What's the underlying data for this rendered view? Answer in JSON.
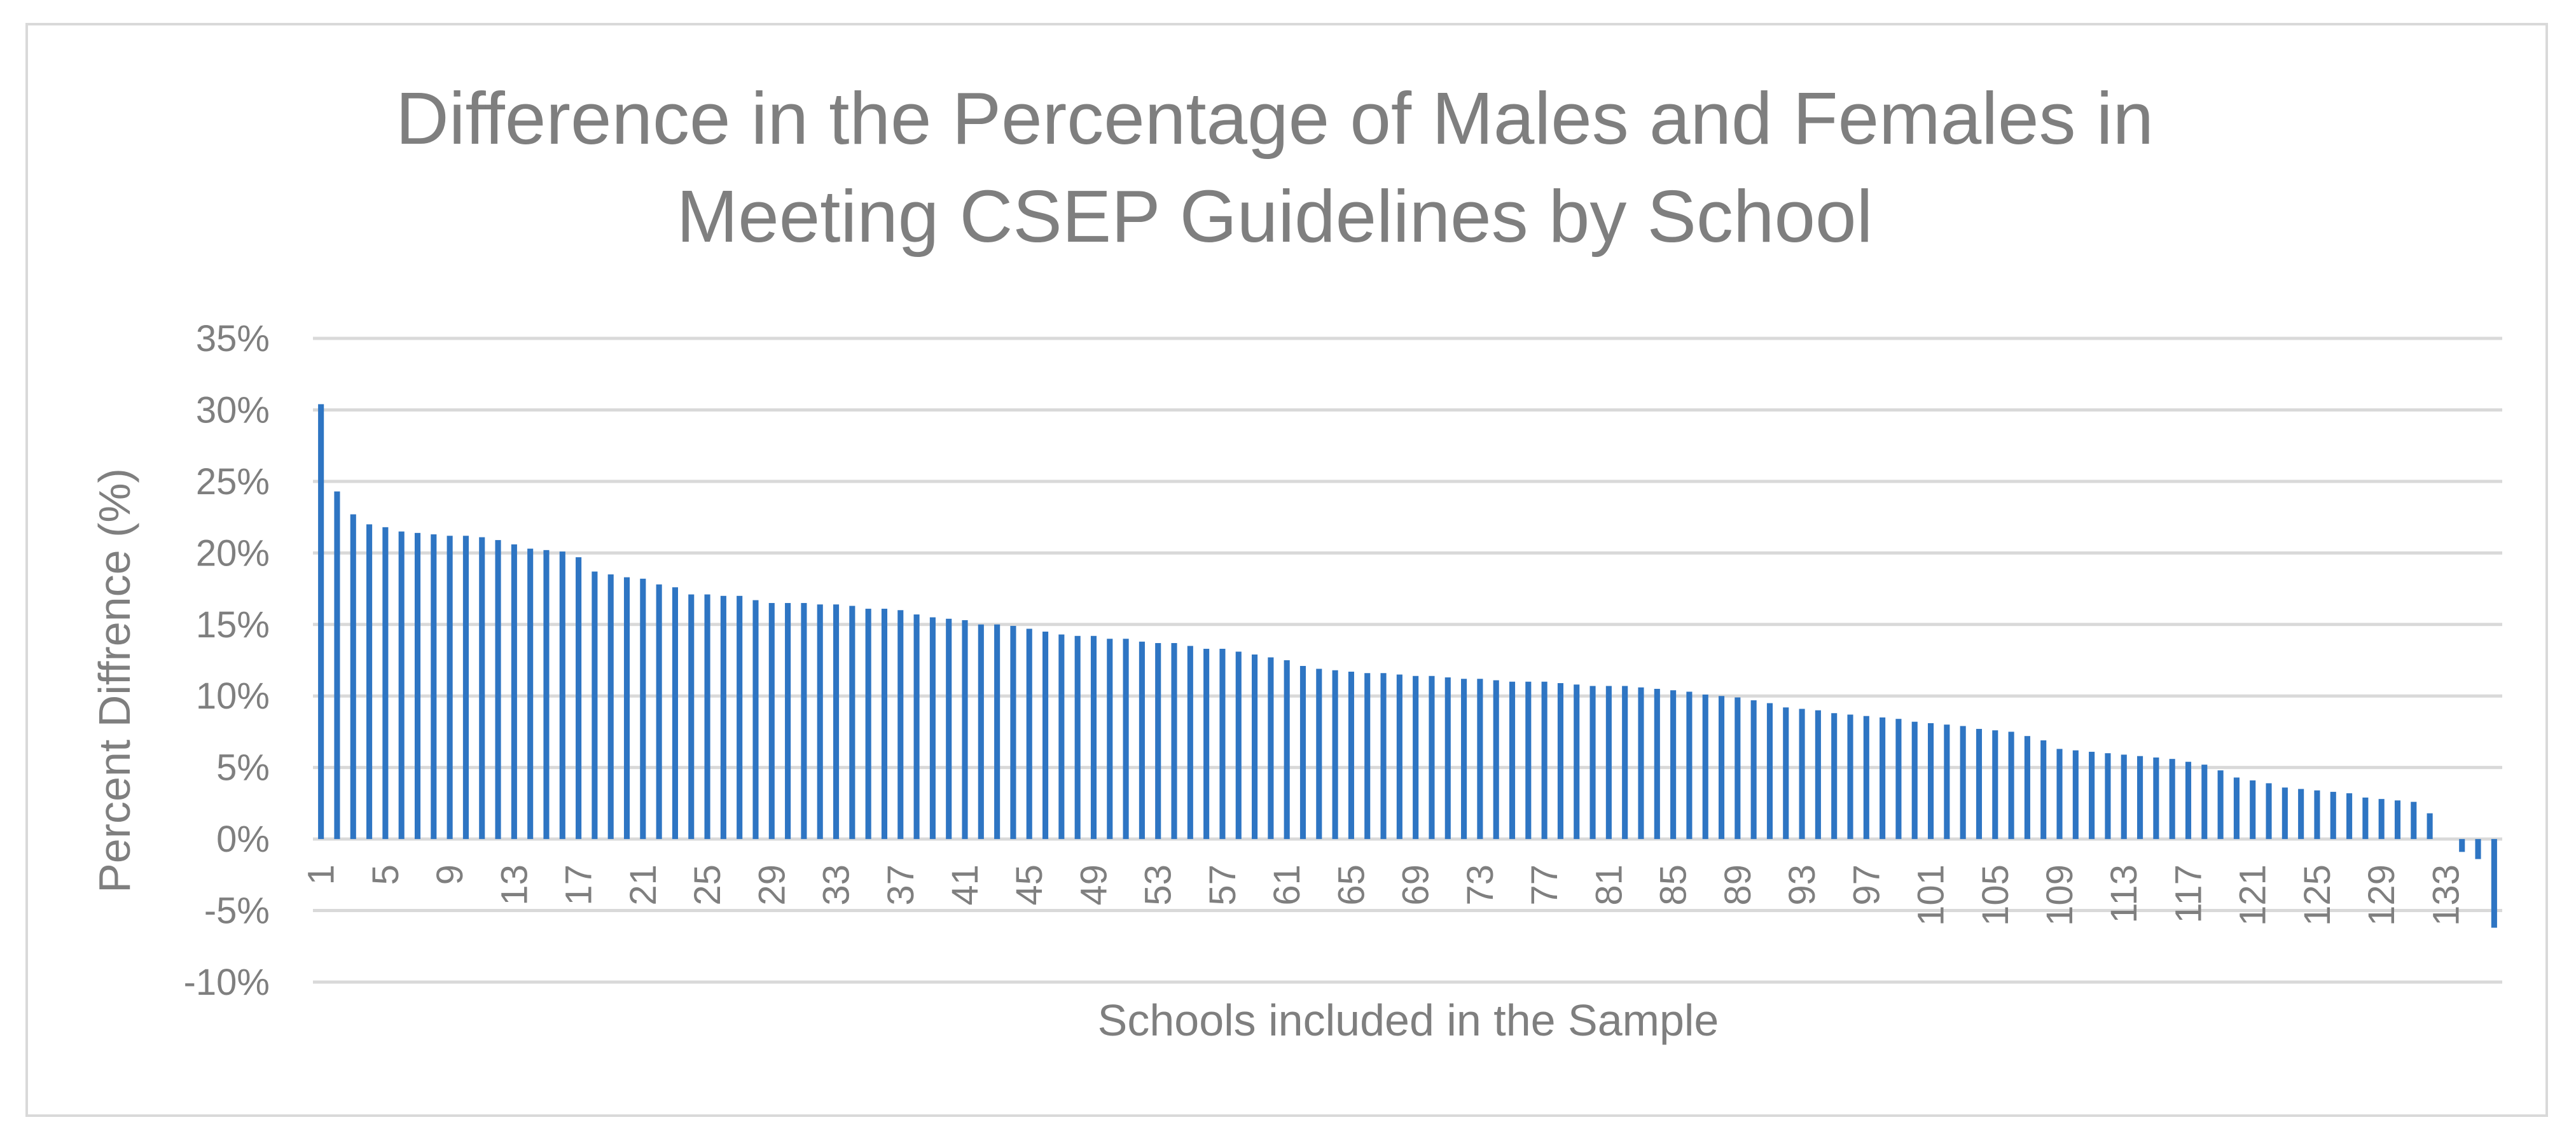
{
  "chart_data": {
    "type": "bar",
    "title_lines": [
      "Difference in the Percentage of Males and Females in",
      "Meeting CSEP Guidelines by School"
    ],
    "xlabel": "Schools included in the Sample",
    "ylabel": "Percent Diffrence (%)",
    "ylim": [
      -10,
      35
    ],
    "y_ticks": [
      35,
      30,
      25,
      20,
      15,
      10,
      5,
      0,
      -5,
      -10
    ],
    "y_tick_labels": [
      "35%",
      "30%",
      "25%",
      "20%",
      "15%",
      "10%",
      "5%",
      "0%",
      "-5%",
      "-10%"
    ],
    "x_tick_labels": [
      "1",
      "5",
      "9",
      "13",
      "17",
      "21",
      "25",
      "29",
      "33",
      "37",
      "41",
      "45",
      "49",
      "53",
      "57",
      "61",
      "65",
      "69",
      "73",
      "77",
      "81",
      "85",
      "89",
      "93",
      "97",
      "101",
      "105",
      "109",
      "113",
      "117",
      "121",
      "125",
      "129",
      "133"
    ],
    "grid": true,
    "bar_color": "#2e75c3",
    "categories": [
      "1",
      "2",
      "3",
      "4",
      "5",
      "6",
      "7",
      "8",
      "9",
      "10",
      "11",
      "12",
      "13",
      "14",
      "15",
      "16",
      "17",
      "18",
      "19",
      "20",
      "21",
      "22",
      "23",
      "24",
      "25",
      "26",
      "27",
      "28",
      "29",
      "30",
      "31",
      "32",
      "33",
      "34",
      "35",
      "36",
      "37",
      "38",
      "39",
      "40",
      "41",
      "42",
      "43",
      "44",
      "45",
      "46",
      "47",
      "48",
      "49",
      "50",
      "51",
      "52",
      "53",
      "54",
      "55",
      "56",
      "57",
      "58",
      "59",
      "60",
      "61",
      "62",
      "63",
      "64",
      "65",
      "66",
      "67",
      "68",
      "69",
      "70",
      "71",
      "72",
      "73",
      "74",
      "75",
      "76",
      "77",
      "78",
      "79",
      "80",
      "81",
      "82",
      "83",
      "84",
      "85",
      "86",
      "87",
      "88",
      "89",
      "90",
      "91",
      "92",
      "93",
      "94",
      "95",
      "96",
      "97",
      "98",
      "99",
      "100",
      "101",
      "102",
      "103",
      "104",
      "105",
      "106",
      "107",
      "108",
      "109",
      "110",
      "111",
      "112",
      "113",
      "114",
      "115",
      "116",
      "117",
      "118",
      "119",
      "120",
      "121",
      "122",
      "123",
      "124",
      "125",
      "126",
      "127",
      "128",
      "129",
      "130",
      "131",
      "132",
      "133",
      "134",
      "135",
      "136"
    ],
    "values": [
      30.4,
      24.3,
      22.7,
      22.0,
      21.8,
      21.5,
      21.4,
      21.3,
      21.2,
      21.2,
      21.1,
      20.9,
      20.6,
      20.3,
      20.2,
      20.1,
      19.7,
      18.7,
      18.5,
      18.3,
      18.2,
      17.8,
      17.6,
      17.1,
      17.1,
      17.0,
      17.0,
      16.7,
      16.5,
      16.5,
      16.5,
      16.4,
      16.4,
      16.3,
      16.1,
      16.1,
      16.0,
      15.7,
      15.5,
      15.4,
      15.3,
      15.0,
      15.0,
      14.9,
      14.7,
      14.5,
      14.3,
      14.2,
      14.2,
      14.0,
      14.0,
      13.8,
      13.7,
      13.7,
      13.5,
      13.3,
      13.3,
      13.1,
      12.9,
      12.7,
      12.5,
      12.1,
      11.9,
      11.8,
      11.7,
      11.6,
      11.6,
      11.5,
      11.4,
      11.4,
      11.3,
      11.2,
      11.2,
      11.1,
      11.0,
      11.0,
      11.0,
      10.9,
      10.8,
      10.7,
      10.7,
      10.7,
      10.6,
      10.5,
      10.4,
      10.3,
      10.1,
      10.0,
      9.9,
      9.7,
      9.5,
      9.2,
      9.1,
      9.0,
      8.8,
      8.7,
      8.6,
      8.5,
      8.4,
      8.2,
      8.1,
      8.0,
      7.9,
      7.7,
      7.6,
      7.5,
      7.2,
      6.9,
      6.3,
      6.2,
      6.1,
      6.0,
      5.9,
      5.8,
      5.7,
      5.6,
      5.4,
      5.2,
      4.8,
      4.3,
      4.1,
      3.9,
      3.6,
      3.5,
      3.4,
      3.3,
      3.2,
      2.9,
      2.8,
      2.7,
      2.6,
      1.8,
      0.0,
      -0.9,
      -1.4,
      -6.2
    ]
  }
}
